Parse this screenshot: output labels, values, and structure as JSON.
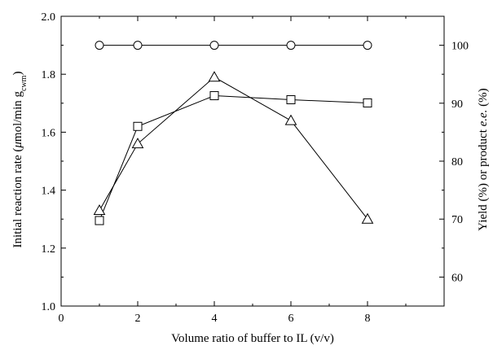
{
  "chart_data": {
    "type": "line",
    "xlabel": "Volume ratio of buffer to IL (v/v)",
    "ylabel": "Initial reaction rate (μmol/min g_cwm)",
    "ylabel_parts": {
      "prefix": "Initial reaction rate (",
      "mu": "μ",
      "mid": "mol/min g",
      "sub": "cwm",
      "suffix": ")"
    },
    "y2label": "Yield (%) or product e.e. (%)",
    "y2label_parts": {
      "prefix": "Yield (%) or product ",
      "italic": "e.e.",
      "suffix": " (%)"
    },
    "xlim": [
      0,
      10
    ],
    "ylim": [
      1.0,
      2.0
    ],
    "y2lim": [
      55,
      105
    ],
    "x_ticks": [
      "0",
      "2",
      "4",
      "6",
      "8"
    ],
    "y_ticks": [
      "1.0",
      "1.2",
      "1.4",
      "1.6",
      "1.8",
      "2.0"
    ],
    "y2_ticks": [
      "60",
      "70",
      "80",
      "90",
      "100"
    ],
    "grid": false,
    "series": [
      {
        "marker": "circle",
        "axis": "right",
        "x": [
          1,
          2,
          4,
          6,
          8
        ],
        "values": [
          100,
          100,
          100,
          100,
          100
        ]
      },
      {
        "marker": "square",
        "axis": "left",
        "x": [
          1,
          2,
          4,
          6,
          8
        ],
        "values": [
          1.295,
          1.62,
          1.726,
          1.712,
          1.701
        ]
      },
      {
        "marker": "triangle",
        "axis": "left",
        "x": [
          1,
          2,
          4,
          6,
          8
        ],
        "values": [
          1.33,
          1.56,
          1.79,
          1.64,
          1.3
        ]
      }
    ]
  }
}
